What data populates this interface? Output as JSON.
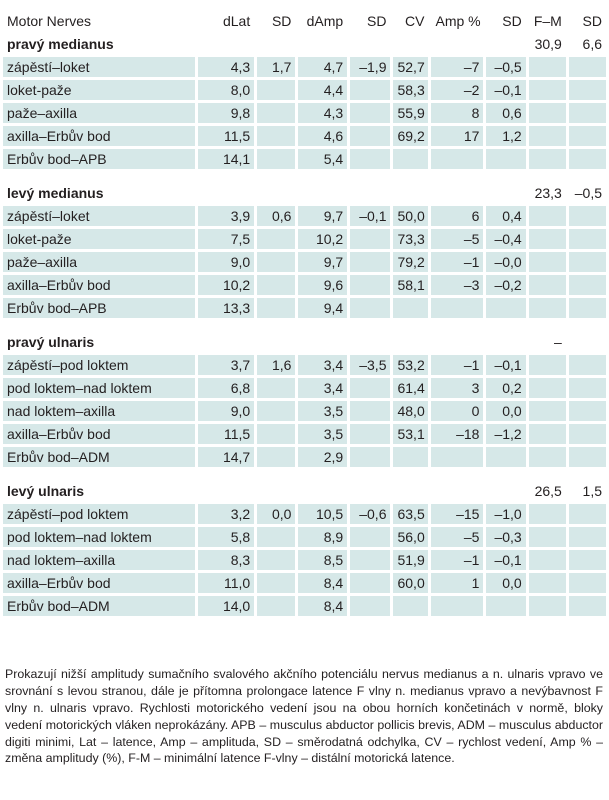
{
  "table": {
    "headers": [
      "Motor Nerves",
      "dLat",
      "SD",
      "dAmp",
      "SD",
      "CV",
      "Amp %",
      "SD",
      "F–M",
      "SD"
    ],
    "sections": [
      {
        "title": "pravý medianus",
        "fm": "30,9",
        "fm_sd": "6,6",
        "rows": [
          [
            "zápěstí–loket",
            "4,3",
            "1,7",
            "4,7",
            "–1,9",
            "52,7",
            "–7",
            "–0,5"
          ],
          [
            "loket-paže",
            "8,0",
            "",
            "4,4",
            "",
            "58,3",
            "–2",
            "–0,1"
          ],
          [
            "paže–axilla",
            "9,8",
            "",
            "4,3",
            "",
            "55,9",
            "8",
            "0,6"
          ],
          [
            "axilla–Erbův bod",
            "11,5",
            "",
            "4,6",
            "",
            "69,2",
            "17",
            "1,2"
          ],
          [
            "Erbův bod–APB",
            "14,1",
            "",
            "5,4",
            "",
            "",
            "",
            ""
          ]
        ]
      },
      {
        "title": "levý medianus",
        "fm": "23,3",
        "fm_sd": "–0,5",
        "rows": [
          [
            "zápěstí–loket",
            "3,9",
            "0,6",
            "9,7",
            "–0,1",
            "50,0",
            "6",
            "0,4"
          ],
          [
            "loket-paže",
            "7,5",
            "",
            "10,2",
            "",
            "73,3",
            "–5",
            "–0,4"
          ],
          [
            "paže–axilla",
            "9,0",
            "",
            "9,7",
            "",
            "79,2",
            "–1",
            "–0,0"
          ],
          [
            "axilla–Erbův bod",
            "10,2",
            "",
            "9,6",
            "",
            "58,1",
            "–3",
            "–0,2"
          ],
          [
            "Erbův bod–APB",
            "13,3",
            "",
            "9,4",
            "",
            "",
            "",
            ""
          ]
        ]
      },
      {
        "title": "pravý ulnaris",
        "fm": "–",
        "fm_sd": "",
        "rows": [
          [
            "zápěstí–pod loktem",
            "3,7",
            "1,6",
            "3,4",
            "–3,5",
            "53,2",
            "–1",
            "–0,1"
          ],
          [
            "pod loktem–nad loktem",
            "6,8",
            "",
            "3,4",
            "",
            "61,4",
            "3",
            "0,2"
          ],
          [
            "nad loktem–axilla",
            "9,0",
            "",
            "3,5",
            "",
            "48,0",
            "0",
            "0,0"
          ],
          [
            "axilla–Erbův bod",
            "11,5",
            "",
            "3,5",
            "",
            "53,1",
            "–18",
            "–1,2"
          ],
          [
            "Erbův bod–ADM",
            "14,7",
            "",
            "2,9",
            "",
            "",
            "",
            ""
          ]
        ]
      },
      {
        "title": "levý ulnaris",
        "fm": "26,5",
        "fm_sd": "1,5",
        "rows": [
          [
            "zápěstí–pod loktem",
            "3,2",
            "0,0",
            "10,5",
            "–0,6",
            "63,5",
            "–15",
            "–1,0"
          ],
          [
            "pod loktem–nad loktem",
            "5,8",
            "",
            "8,9",
            "",
            "56,0",
            "–5",
            "–0,3"
          ],
          [
            "nad loktem–axilla",
            "8,3",
            "",
            "8,5",
            "",
            "51,9",
            "–1",
            "–0,1"
          ],
          [
            "axilla–Erbův bod",
            "11,0",
            "",
            "8,4",
            "",
            "60,0",
            "1",
            "0,0"
          ],
          [
            "Erbův bod–ADM",
            "14,0",
            "",
            "8,4",
            "",
            "",
            "",
            ""
          ]
        ]
      }
    ]
  },
  "note": "Prokazují nižší amplitudy sumačního svalového akčního potenciálu nervus medianus a n. ulnaris vpravo ve srovnání s levou stranou, dále je přítomna prolongace latence F vlny n. medianus vpravo a nevýbavnost F vlny n. ulnaris vpravo. Rychlosti motorického vedení jsou na obou horních končetinách v normě, bloky vedení motorických vláken neprokázány. APB – musculus abductor pollicis brevis, ADM – musculus abductor digiti minimi, Lat – latence, Amp – amplituda, SD – směrodatná odchylka, CV – rychlost vedení, Amp % – změna amplitudy (%), F-M – minimální latence F-vlny – distální motorická latence.",
  "colors": {
    "row_fill": "#d6e8e8",
    "text": "#231f20"
  }
}
